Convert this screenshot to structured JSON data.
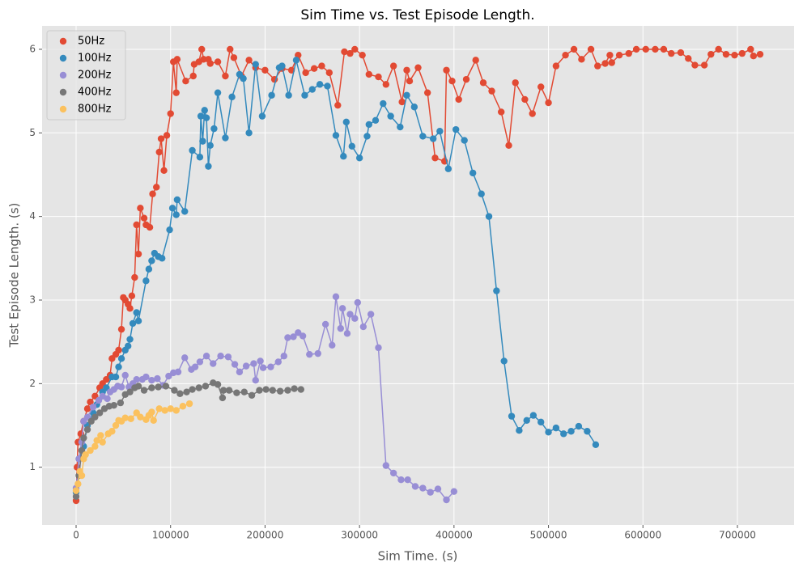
{
  "chart_data": {
    "type": "line",
    "title": "Sim Time vs. Test Episode Length.",
    "x_label": "Sim Time. (s)",
    "y_label": "Test Episode Length. (s)",
    "xlim": [
      -36000,
      760000
    ],
    "ylim": [
      0.31,
      6.28
    ],
    "xticks": [
      0,
      100000,
      200000,
      300000,
      400000,
      500000,
      600000,
      700000
    ],
    "yticks": [
      1,
      2,
      3,
      4,
      5,
      6
    ],
    "grid": true,
    "legend": "upper left",
    "markers": true,
    "series": [
      {
        "name": "50Hz",
        "color": "#E24A33",
        "x": [
          0,
          1000,
          2000,
          5000,
          8000,
          12000,
          15000,
          20000,
          25000,
          28000,
          32000,
          36000,
          38000,
          42000,
          45000,
          48000,
          50000,
          52000,
          55000,
          57000,
          59000,
          62000,
          64000,
          66000,
          68000,
          72000,
          74000,
          78000,
          81000,
          85000,
          88000,
          90000,
          93000,
          96000,
          100000,
          103000,
          106000,
          107000,
          116000,
          124000,
          125000,
          130000,
          133000,
          135000,
          140000,
          142000,
          150000,
          158000,
          163000,
          167000,
          175000,
          183000,
          190000,
          200000,
          210000,
          218000,
          228000,
          235000,
          243000,
          252000,
          260000,
          268000,
          277000,
          284000,
          290000,
          295000,
          303000,
          310000,
          320000,
          328000,
          336000,
          345000,
          350000,
          353000,
          362000,
          372000,
          380000,
          390000,
          392000,
          398000,
          405000,
          413000,
          423000,
          431000,
          440000,
          450000,
          458000,
          465000,
          475000,
          483000,
          492000,
          500000,
          508000,
          518000,
          527000,
          535000,
          545000,
          552000,
          560000,
          565000,
          567000,
          575000,
          585000,
          593000,
          603000,
          613000,
          622000,
          630000,
          640000,
          648000,
          655000,
          665000,
          672000,
          680000,
          688000,
          697000,
          705000,
          714000,
          717000,
          724000
        ],
        "values": [
          0.6,
          1.0,
          1.3,
          1.4,
          1.55,
          1.7,
          1.78,
          1.85,
          1.95,
          2.0,
          2.05,
          2.1,
          2.3,
          2.35,
          2.4,
          2.65,
          3.03,
          3.0,
          2.95,
          2.9,
          3.05,
          3.27,
          3.9,
          3.55,
          4.1,
          3.98,
          3.9,
          3.87,
          4.27,
          4.35,
          4.77,
          4.93,
          4.55,
          4.97,
          5.23,
          5.85,
          5.48,
          5.88,
          5.62,
          5.68,
          5.82,
          5.85,
          6.0,
          5.88,
          5.88,
          5.83,
          5.85,
          5.68,
          6.0,
          5.9,
          5.68,
          5.87,
          5.78,
          5.75,
          5.64,
          5.77,
          5.75,
          5.93,
          5.72,
          5.77,
          5.8,
          5.72,
          5.33,
          5.97,
          5.95,
          6.0,
          5.93,
          5.7,
          5.67,
          5.58,
          5.8,
          5.37,
          5.75,
          5.62,
          5.78,
          5.48,
          4.7,
          4.66,
          5.75,
          5.62,
          5.4,
          5.64,
          5.87,
          5.6,
          5.5,
          5.25,
          4.85,
          5.6,
          5.4,
          5.23,
          5.55,
          5.36,
          5.8,
          5.93,
          6.0,
          5.88,
          6.0,
          5.8,
          5.83,
          5.93,
          5.84,
          5.93,
          5.95,
          6.0,
          6.0,
          6.0,
          6.0,
          5.95,
          5.96,
          5.89,
          5.81,
          5.81,
          5.94,
          6.0,
          5.94,
          5.93,
          5.95,
          6.0,
          5.92,
          5.94
        ]
      },
      {
        "name": "100Hz",
        "color": "#348ABD",
        "x": [
          0,
          3000,
          8000,
          12000,
          18000,
          22000,
          28000,
          32000,
          38000,
          42000,
          45000,
          48000,
          52000,
          55000,
          57000,
          60000,
          64000,
          66000,
          74000,
          77000,
          80000,
          83000,
          87000,
          91000,
          99000,
          102000,
          106000,
          107000,
          115000,
          123000,
          131000,
          132000,
          134000,
          136000,
          138000,
          140000,
          142000,
          146000,
          150000,
          158000,
          165000,
          173000,
          177000,
          183000,
          190000,
          197000,
          207000,
          215000,
          218000,
          225000,
          233000,
          242000,
          250000,
          258000,
          266000,
          275000,
          283000,
          286000,
          292000,
          300000,
          308000,
          310000,
          317000,
          325000,
          333000,
          343000,
          350000,
          358000,
          367000,
          378000,
          385000,
          394000,
          402000,
          411000,
          420000,
          429000,
          437000,
          445000,
          453000,
          461000,
          469000,
          477000,
          484000,
          492000,
          500000,
          508000,
          516000,
          524000,
          532000,
          541000,
          550000
        ],
        "values": [
          0.7,
          1.1,
          1.25,
          1.5,
          1.65,
          1.75,
          1.9,
          1.95,
          2.08,
          2.08,
          2.2,
          2.3,
          2.4,
          2.45,
          2.53,
          2.72,
          2.85,
          2.75,
          3.23,
          3.37,
          3.47,
          3.56,
          3.52,
          3.5,
          3.84,
          4.1,
          4.02,
          4.2,
          4.06,
          4.79,
          4.71,
          5.2,
          4.9,
          5.27,
          5.18,
          4.6,
          4.85,
          5.05,
          5.48,
          4.94,
          5.43,
          5.7,
          5.65,
          5.0,
          5.82,
          5.2,
          5.45,
          5.78,
          5.8,
          5.45,
          5.87,
          5.45,
          5.52,
          5.58,
          5.56,
          4.97,
          4.72,
          5.13,
          4.84,
          4.7,
          4.96,
          5.1,
          5.15,
          5.35,
          5.2,
          5.07,
          5.45,
          5.31,
          4.96,
          4.93,
          5.02,
          4.57,
          5.04,
          4.91,
          4.52,
          4.27,
          4.0,
          3.11,
          2.27,
          1.61,
          1.44,
          1.56,
          1.62,
          1.54,
          1.42,
          1.47,
          1.4,
          1.43,
          1.49,
          1.43,
          1.27
        ]
      },
      {
        "name": "200Hz",
        "color": "#988ED5",
        "x": [
          0,
          3000,
          6000,
          8000,
          12000,
          18000,
          24000,
          28000,
          33000,
          36000,
          40000,
          44000,
          48000,
          52000,
          56000,
          60000,
          64000,
          70000,
          74000,
          80000,
          86000,
          92000,
          98000,
          103000,
          108000,
          115000,
          122000,
          126000,
          131000,
          138000,
          145000,
          153000,
          161000,
          168000,
          173000,
          180000,
          188000,
          190000,
          195000,
          198000,
          206000,
          214000,
          220000,
          224000,
          230000,
          235000,
          240000,
          247000,
          256000,
          264000,
          271000,
          275000,
          280000,
          282000,
          287000,
          290000,
          295000,
          298000,
          304000,
          312000,
          320000,
          328000,
          336000,
          344000,
          351000,
          359000,
          367000,
          375000,
          383000,
          392000,
          400000
        ],
        "values": [
          0.75,
          1.1,
          1.3,
          1.55,
          1.6,
          1.72,
          1.8,
          1.85,
          1.82,
          1.9,
          1.93,
          1.97,
          1.96,
          2.1,
          1.96,
          2.0,
          2.05,
          2.05,
          2.08,
          2.04,
          2.06,
          1.98,
          2.09,
          2.13,
          2.14,
          2.31,
          2.17,
          2.2,
          2.26,
          2.33,
          2.24,
          2.33,
          2.32,
          2.23,
          2.14,
          2.21,
          2.24,
          2.04,
          2.27,
          2.19,
          2.2,
          2.26,
          2.33,
          2.55,
          2.56,
          2.61,
          2.57,
          2.35,
          2.36,
          2.71,
          2.46,
          3.04,
          2.66,
          2.9,
          2.6,
          2.83,
          2.78,
          2.97,
          2.68,
          2.83,
          2.43,
          1.02,
          0.93,
          0.85,
          0.85,
          0.77,
          0.75,
          0.7,
          0.74,
          0.61,
          0.71
        ]
      },
      {
        "name": "400Hz",
        "color": "#777777",
        "x": [
          0,
          3000,
          6000,
          8000,
          12000,
          16000,
          20000,
          25000,
          30000,
          35000,
          40000,
          47000,
          52000,
          57000,
          62000,
          66000,
          72000,
          80000,
          87000,
          95000,
          104000,
          110000,
          117000,
          123000,
          130000,
          137000,
          145000,
          150000,
          155000,
          156000,
          162000,
          170000,
          178000,
          186000,
          194000,
          201000,
          208000,
          216000,
          224000,
          231000,
          238000
        ],
        "values": [
          0.65,
          0.9,
          1.2,
          1.35,
          1.45,
          1.55,
          1.6,
          1.65,
          1.7,
          1.73,
          1.74,
          1.77,
          1.87,
          1.9,
          1.95,
          1.97,
          1.92,
          1.95,
          1.96,
          1.97,
          1.92,
          1.88,
          1.9,
          1.93,
          1.95,
          1.97,
          2.01,
          1.99,
          1.83,
          1.92,
          1.92,
          1.89,
          1.9,
          1.86,
          1.92,
          1.93,
          1.92,
          1.91,
          1.92,
          1.94,
          1.93
        ]
      },
      {
        "name": "800Hz",
        "color": "#FBC15E",
        "x": [
          0,
          2000,
          4000,
          6000,
          8000,
          10000,
          15000,
          20000,
          22000,
          26000,
          28000,
          34000,
          38000,
          42000,
          45000,
          48000,
          52000,
          58000,
          64000,
          68000,
          74000,
          77000,
          80000,
          82000,
          88000,
          94000,
          100000,
          106000,
          113000,
          120000
        ],
        "values": [
          0.72,
          0.8,
          0.95,
          0.9,
          1.1,
          1.15,
          1.2,
          1.25,
          1.32,
          1.38,
          1.3,
          1.4,
          1.43,
          1.5,
          1.56,
          1.55,
          1.59,
          1.58,
          1.65,
          1.6,
          1.57,
          1.62,
          1.66,
          1.56,
          1.7,
          1.68,
          1.7,
          1.68,
          1.73,
          1.76
        ]
      }
    ]
  }
}
